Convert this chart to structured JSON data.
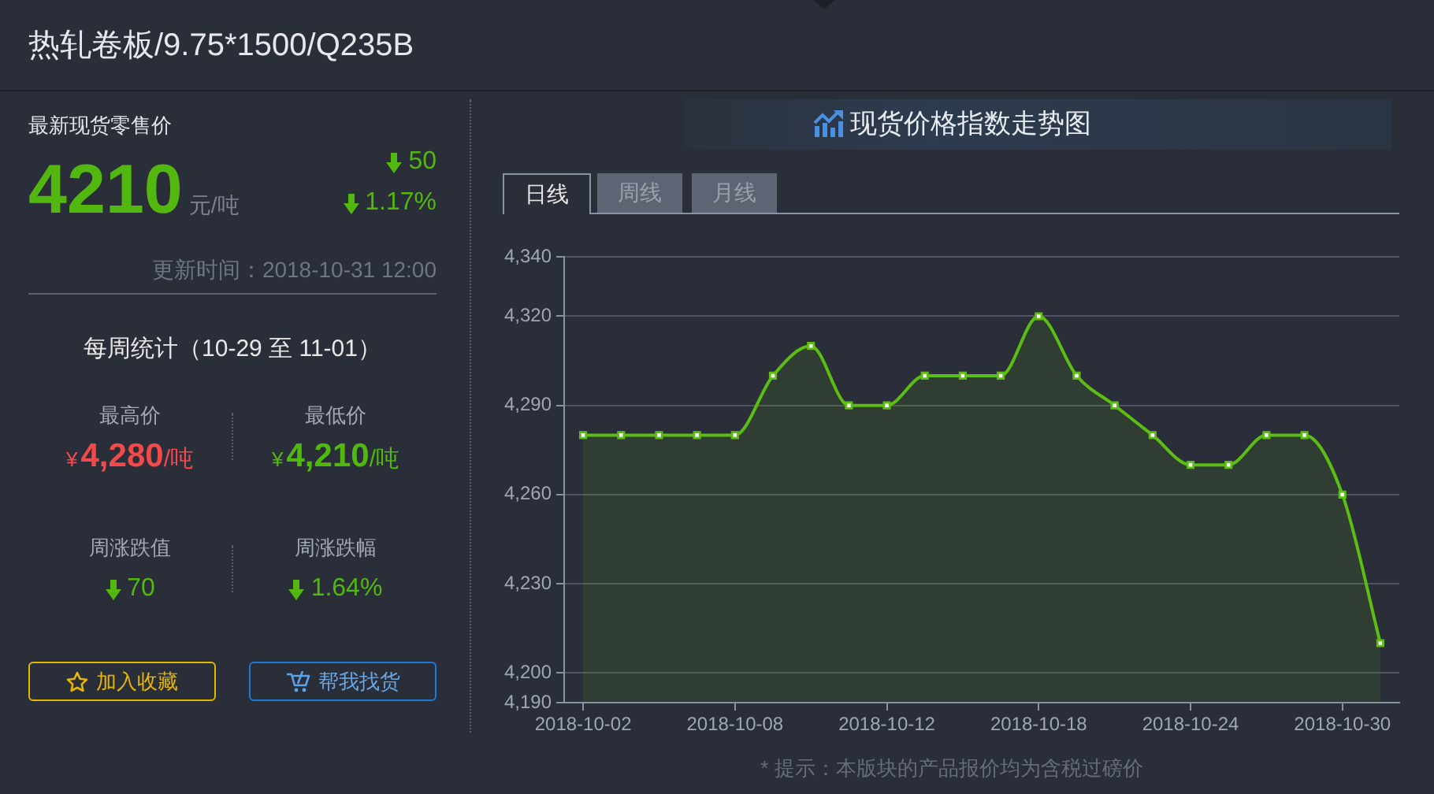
{
  "chart_data": [
    {
      "type": "other",
      "title": "热轧卷板/9.75*1500/Q235B",
      "annotations": [
        "最新现货零售价",
        "4210",
        "元/吨",
        "50",
        "1.17%",
        "更新时间：2018-10-31 12:00",
        "每周统计（10-29 至 11-01）",
        "最高价",
        "¥",
        "4,280",
        "/吨",
        "最低价",
        "¥",
        "4,210",
        "/吨",
        "周涨跌值",
        "70",
        "周涨跌幅",
        "1.64%",
        "加入收藏",
        "帮我找货"
      ]
    },
    {
      "type": "area",
      "title": "现货价格指数走势图",
      "categories": [
        "2018-10-02",
        null,
        null,
        null,
        "2018-10-08",
        null,
        null,
        null,
        "2018-10-12",
        null,
        null,
        null,
        "2018-10-18",
        null,
        null,
        null,
        "2018-10-24",
        null,
        null,
        null,
        "2018-10-30",
        null
      ],
      "series": [
        {
          "color": "#5cbd12",
          "values": [
            4280,
            4280,
            4280,
            4280,
            4280,
            4300,
            4310,
            4290,
            4290,
            4300,
            4300,
            4300,
            4320,
            4300,
            4290,
            4280,
            4270,
            4270,
            4280,
            4280,
            4260,
            4210
          ]
        }
      ],
      "ylim": [
        4190,
        4340
      ],
      "yticks": [
        {
          "value": 4190,
          "label": "4,190"
        },
        {
          "value": 4200,
          "label": "4,200"
        },
        {
          "value": 4230,
          "label": "4,230"
        },
        {
          "value": 4260,
          "label": "4,260"
        },
        {
          "value": 4290,
          "label": "4,290"
        },
        {
          "value": 4320,
          "label": "4,320"
        },
        {
          "value": 4340,
          "label": "4,340"
        }
      ],
      "grid": "y",
      "marker": "square",
      "annotations": [
        "日线",
        "周线",
        "月线",
        "* 提示：本版块的产品报价均为含税过磅价"
      ]
    }
  ]
}
